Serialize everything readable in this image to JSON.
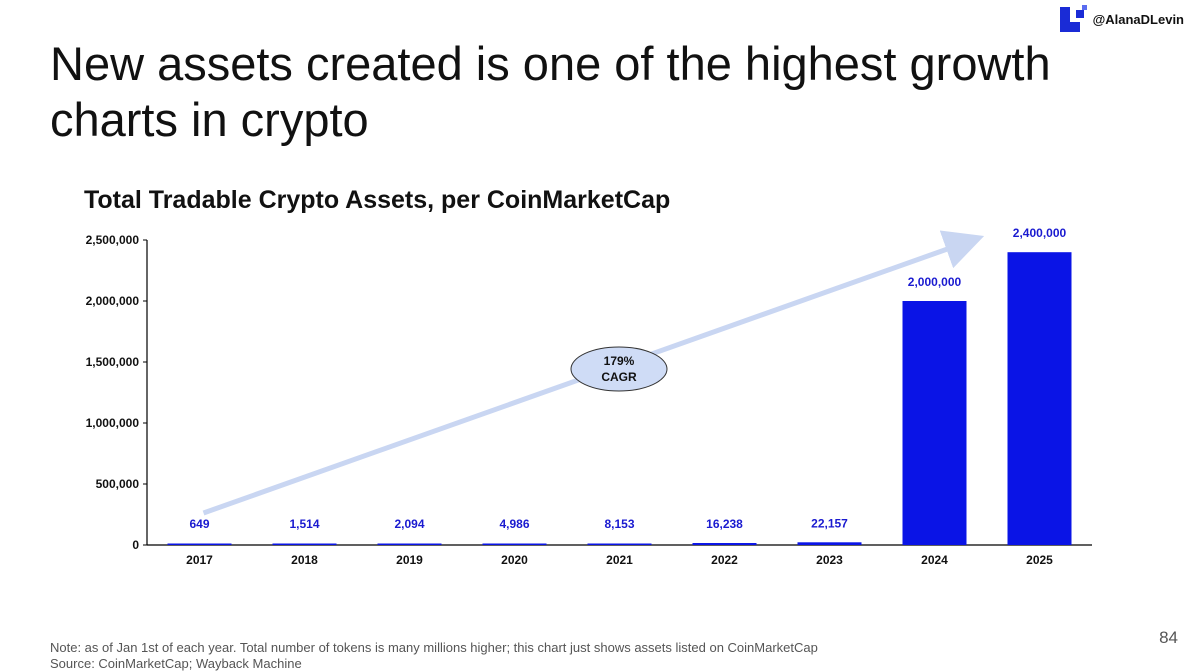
{
  "brand": {
    "handle": "@AlanaDLevin",
    "logo_color": "#1a2bd6"
  },
  "slide": {
    "title": "New assets created is one of the highest growth charts in crypto",
    "page_number": "84"
  },
  "footnote": {
    "note": "Note: as of Jan 1st of each year. Total number of tokens is many millions higher; this chart just shows assets listed on CoinMarketCap",
    "source": "Source: CoinMarketCap; Wayback Machine"
  },
  "chart_data": {
    "type": "bar",
    "title": "Total Tradable Crypto Assets, per CoinMarketCap",
    "categories": [
      "2017",
      "2018",
      "2019",
      "2020",
      "2021",
      "2022",
      "2023",
      "2024",
      "2025"
    ],
    "values": [
      649,
      1514,
      2094,
      4986,
      8153,
      16238,
      22157,
      2000000,
      2400000
    ],
    "value_labels": [
      "649",
      "1,514",
      "2,094",
      "4,986",
      "8,153",
      "16,238",
      "22,157",
      "2,000,000",
      "2,400,000"
    ],
    "ylim": [
      0,
      2500000
    ],
    "yticks": [
      0,
      500000,
      1000000,
      1500000,
      2000000,
      2500000
    ],
    "ytick_labels": [
      "0",
      "500,000",
      "1,000,000",
      "1,500,000",
      "2,000,000",
      "2,500,000"
    ],
    "xlabel": "",
    "ylabel": "",
    "grid": false,
    "bar_color": "#0a14e6",
    "label_color": "#1a1ad0",
    "annotation": {
      "text_line1": "179%",
      "text_line2": "CAGR",
      "arrow_color": "#c9d6f2",
      "ellipse_fill": "#cfdcf6"
    }
  }
}
